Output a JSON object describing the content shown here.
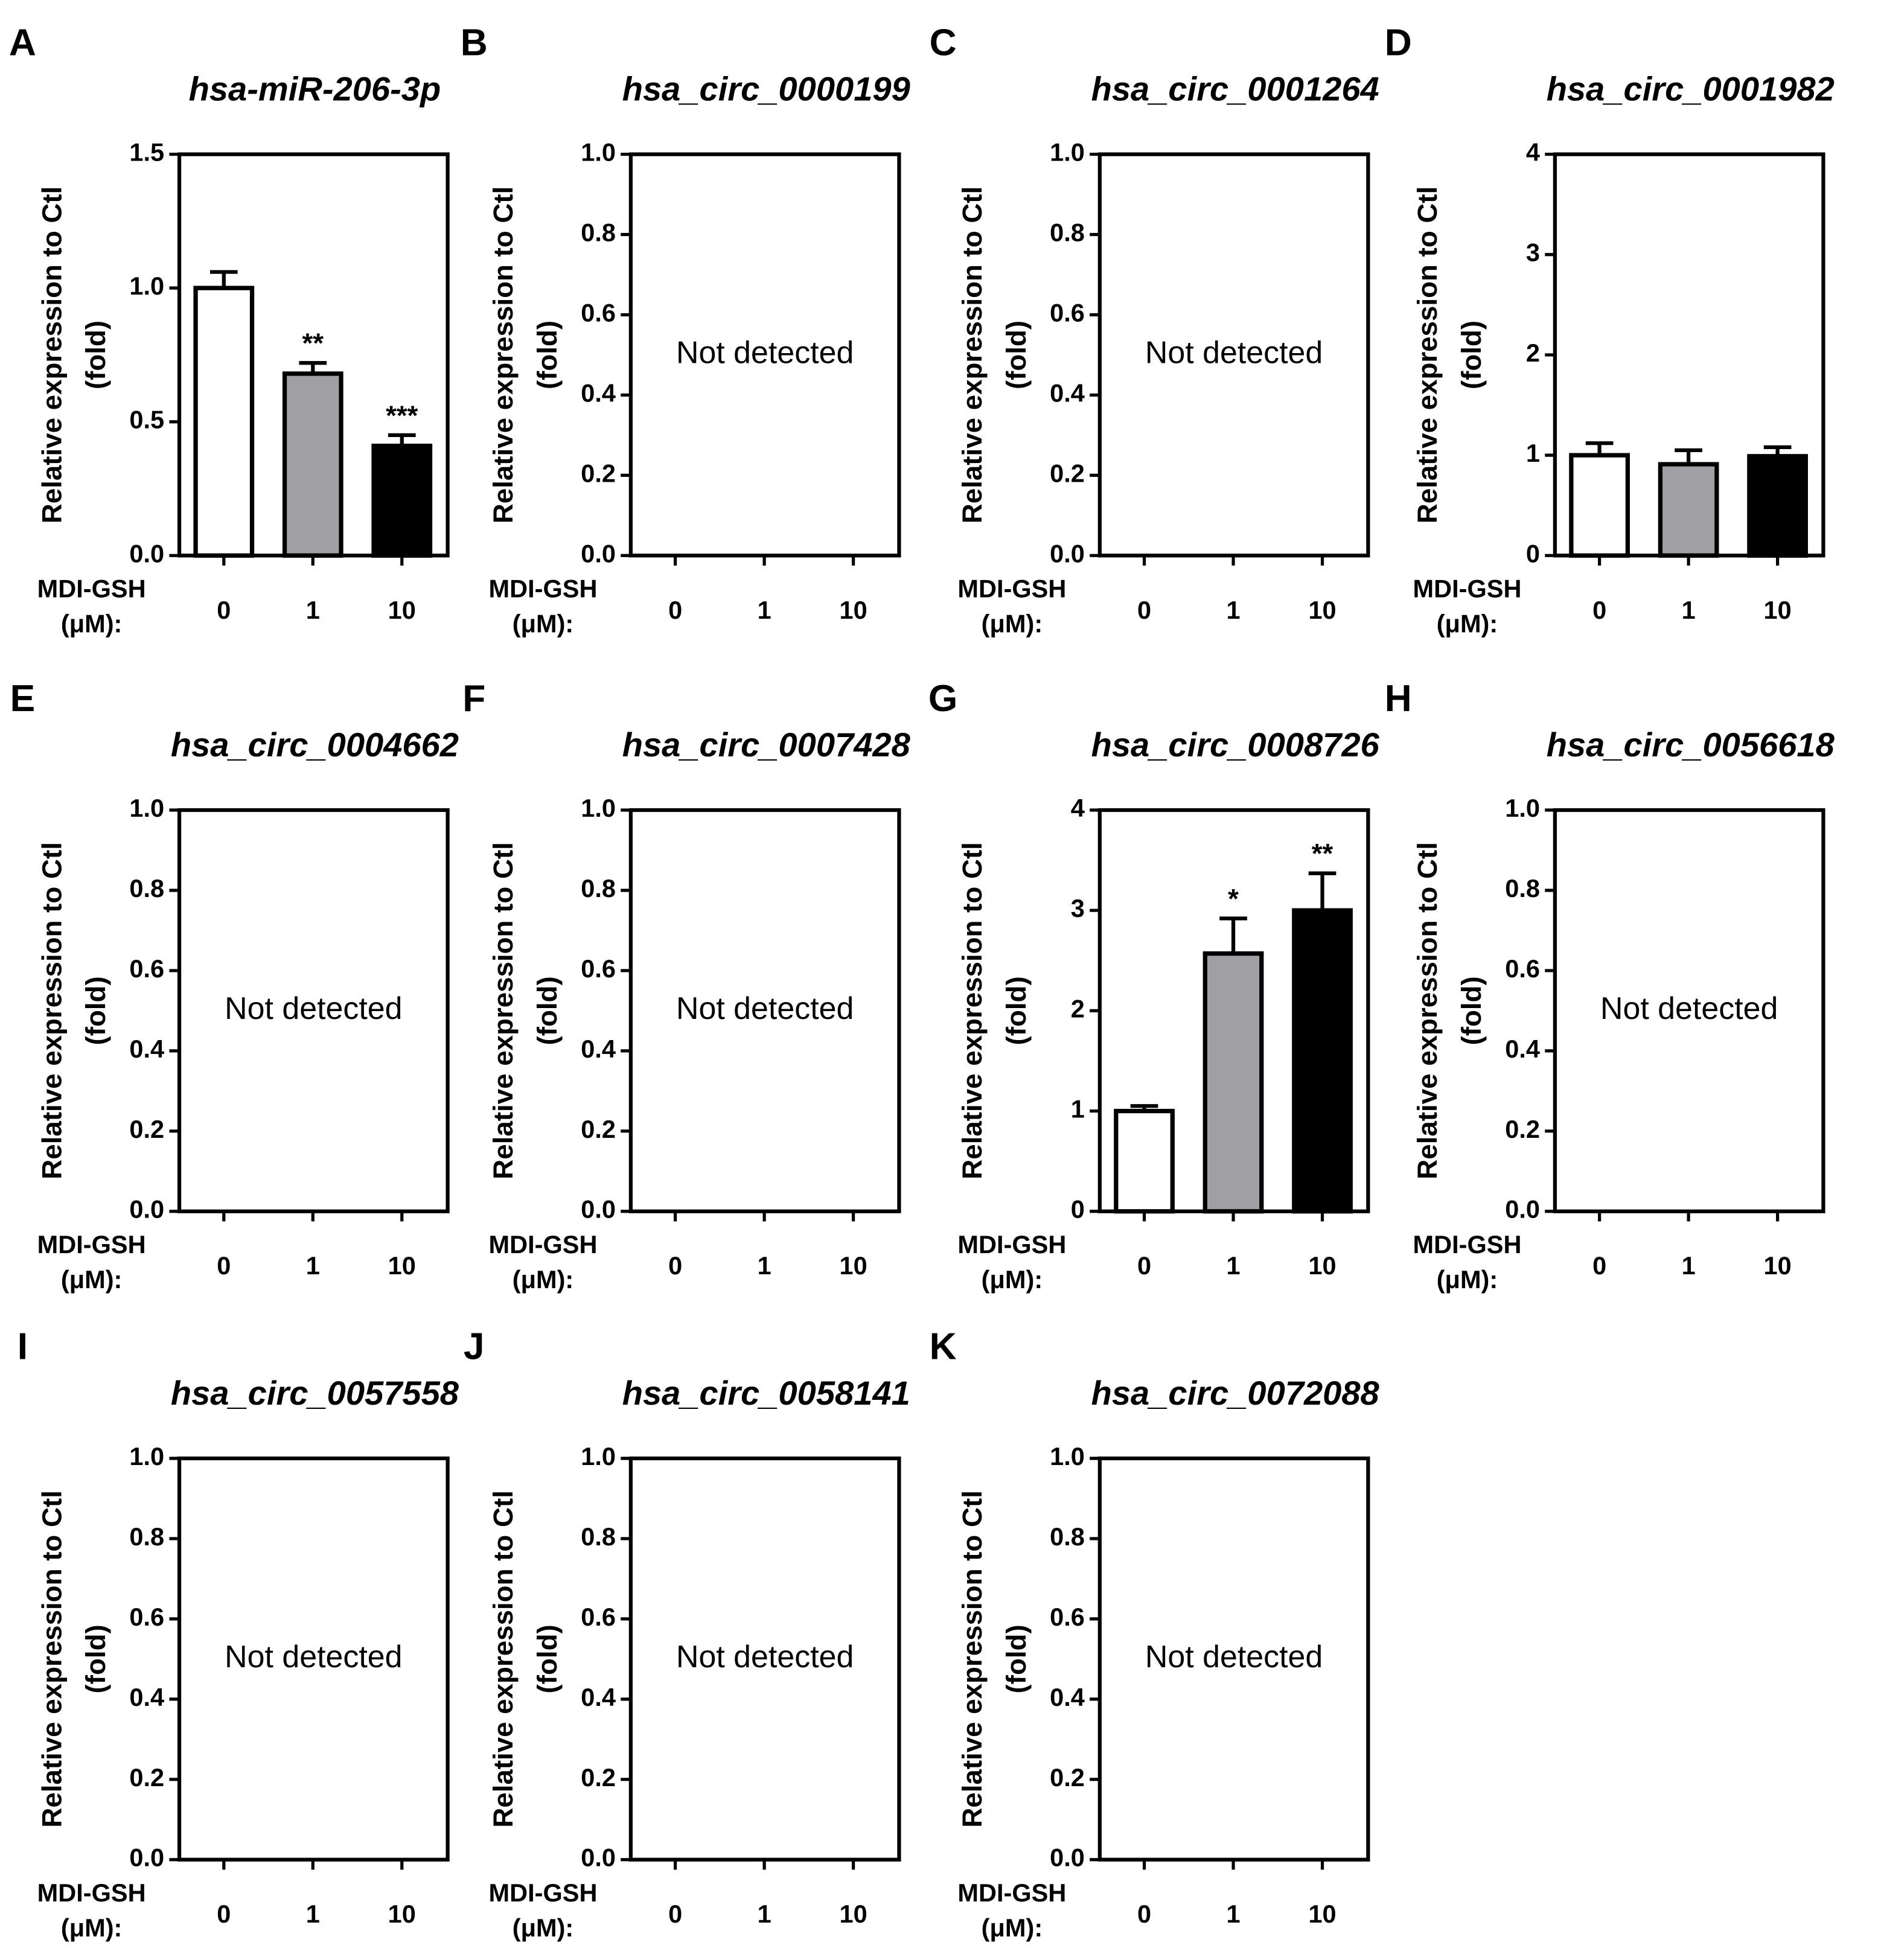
{
  "chart_data": [
    {
      "type": "bar",
      "panel": "A",
      "title": "hsa-miR-206-3p",
      "ylabel": [
        "Relative expression to Ctl",
        "(fold)"
      ],
      "xlabel": [
        "MDI-GSH",
        "(μM):"
      ],
      "categories": [
        "0",
        "1",
        "10"
      ],
      "values": [
        1.0,
        0.68,
        0.41
      ],
      "errors": [
        0.06,
        0.04,
        0.04
      ],
      "annotations": [
        null,
        "**",
        "***"
      ],
      "colors": [
        "#ffffff",
        "#a0a0a4",
        "#000000"
      ],
      "ylim": [
        0,
        1.5
      ],
      "yticks": [
        {
          "value": 0,
          "label": "0.0"
        },
        0.5,
        {
          "value": 1,
          "label": "1.0"
        },
        1.5
      ]
    },
    {
      "type": "bar",
      "panel": "B",
      "title": "hsa_circ_0000199",
      "ylabel": [
        "Relative expression to Ctl",
        "(fold)"
      ],
      "xlabel": [
        "MDI-GSH",
        "(μM):"
      ],
      "categories": [
        "0",
        "1",
        "10"
      ],
      "note": "Not detected",
      "ylim": [
        0,
        1
      ],
      "yticks": [
        {
          "value": 0,
          "label": "0.0"
        },
        0.2,
        0.4,
        0.6,
        0.8,
        {
          "value": 1,
          "label": "1.0"
        }
      ]
    },
    {
      "type": "bar",
      "panel": "C",
      "title": "hsa_circ_0001264",
      "ylabel": [
        "Relative expression to Ctl",
        "(fold)"
      ],
      "xlabel": [
        "MDI-GSH",
        "(μM):"
      ],
      "categories": [
        "0",
        "1",
        "10"
      ],
      "note": "Not detected",
      "ylim": [
        0,
        1
      ],
      "yticks": [
        {
          "value": 0,
          "label": "0.0"
        },
        0.2,
        0.4,
        0.6,
        0.8,
        {
          "value": 1,
          "label": "1.0"
        }
      ]
    },
    {
      "type": "bar",
      "panel": "D",
      "title": "hsa_circ_0001982",
      "ylabel": [
        "Relative expression to Ctl",
        "(fold)"
      ],
      "xlabel": [
        "MDI-GSH",
        "(μM):"
      ],
      "categories": [
        "0",
        "1",
        "10"
      ],
      "values": [
        1.0,
        0.91,
        0.99
      ],
      "errors": [
        0.12,
        0.14,
        0.09
      ],
      "colors": [
        "#ffffff",
        "#a0a0a4",
        "#000000"
      ],
      "ylim": [
        0,
        4
      ],
      "yticks": [
        0,
        1,
        2,
        3,
        4
      ]
    },
    {
      "type": "bar",
      "panel": "E",
      "title": "hsa_circ_0004662",
      "ylabel": [
        "Relative expression to Ctl",
        "(fold)"
      ],
      "xlabel": [
        "MDI-GSH",
        "(μM):"
      ],
      "categories": [
        "0",
        "1",
        "10"
      ],
      "note": "Not detected",
      "ylim": [
        0,
        1
      ],
      "yticks": [
        {
          "value": 0,
          "label": "0.0"
        },
        0.2,
        0.4,
        0.6,
        0.8,
        {
          "value": 1,
          "label": "1.0"
        }
      ]
    },
    {
      "type": "bar",
      "panel": "F",
      "title": "hsa_circ_0007428",
      "ylabel": [
        "Relative expression to Ctl",
        "(fold)"
      ],
      "xlabel": [
        "MDI-GSH",
        "(μM):"
      ],
      "categories": [
        "0",
        "1",
        "10"
      ],
      "note": "Not detected",
      "ylim": [
        0,
        1
      ],
      "yticks": [
        {
          "value": 0,
          "label": "0.0"
        },
        0.2,
        0.4,
        0.6,
        0.8,
        {
          "value": 1,
          "label": "1.0"
        }
      ]
    },
    {
      "type": "bar",
      "panel": "G",
      "title": "hsa_circ_0008726",
      "ylabel": [
        "Relative expression to Ctl",
        "(fold)"
      ],
      "xlabel": [
        "MDI-GSH",
        "(μM):"
      ],
      "categories": [
        "0",
        "1",
        "10"
      ],
      "values": [
        1.0,
        2.57,
        3.0
      ],
      "errors": [
        0.05,
        0.35,
        0.37
      ],
      "annotations": [
        null,
        "*",
        "**"
      ],
      "colors": [
        "#ffffff",
        "#a0a0a4",
        "#000000"
      ],
      "ylim": [
        0,
        4
      ],
      "yticks": [
        0,
        1,
        2,
        3,
        4
      ]
    },
    {
      "type": "bar",
      "panel": "H",
      "title": "hsa_circ_0056618",
      "ylabel": [
        "Relative expression to Ctl",
        "(fold)"
      ],
      "xlabel": [
        "MDI-GSH",
        "(μM):"
      ],
      "categories": [
        "0",
        "1",
        "10"
      ],
      "note": "Not detected",
      "ylim": [
        0,
        1
      ],
      "yticks": [
        {
          "value": 0,
          "label": "0.0"
        },
        0.2,
        0.4,
        0.6,
        0.8,
        {
          "value": 1,
          "label": "1.0"
        }
      ]
    },
    {
      "type": "bar",
      "panel": "I",
      "title": "hsa_circ_0057558",
      "ylabel": [
        "Relative expression to Ctl",
        "(fold)"
      ],
      "xlabel": [
        "MDI-GSH",
        "(μM):"
      ],
      "categories": [
        "0",
        "1",
        "10"
      ],
      "note": "Not detected",
      "ylim": [
        0,
        1
      ],
      "yticks": [
        {
          "value": 0,
          "label": "0.0"
        },
        0.2,
        0.4,
        0.6,
        0.8,
        {
          "value": 1,
          "label": "1.0"
        }
      ]
    },
    {
      "type": "bar",
      "panel": "J",
      "title": "hsa_circ_0058141",
      "ylabel": [
        "Relative expression to Ctl",
        "(fold)"
      ],
      "xlabel": [
        "MDI-GSH",
        "(μM):"
      ],
      "categories": [
        "0",
        "1",
        "10"
      ],
      "note": "Not detected",
      "ylim": [
        0,
        1
      ],
      "yticks": [
        {
          "value": 0,
          "label": "0.0"
        },
        0.2,
        0.4,
        0.6,
        0.8,
        {
          "value": 1,
          "label": "1.0"
        }
      ]
    },
    {
      "type": "bar",
      "panel": "K",
      "title": "hsa_circ_0072088",
      "ylabel": [
        "Relative expression to Ctl",
        "(fold)"
      ],
      "xlabel": [
        "MDI-GSH",
        "(μM):"
      ],
      "categories": [
        "0",
        "1",
        "10"
      ],
      "note": "Not detected",
      "ylim": [
        0,
        1
      ],
      "yticks": [
        {
          "value": 0,
          "label": "0.0"
        },
        0.2,
        0.4,
        0.6,
        0.8,
        {
          "value": 1,
          "label": "1.0"
        }
      ]
    }
  ]
}
